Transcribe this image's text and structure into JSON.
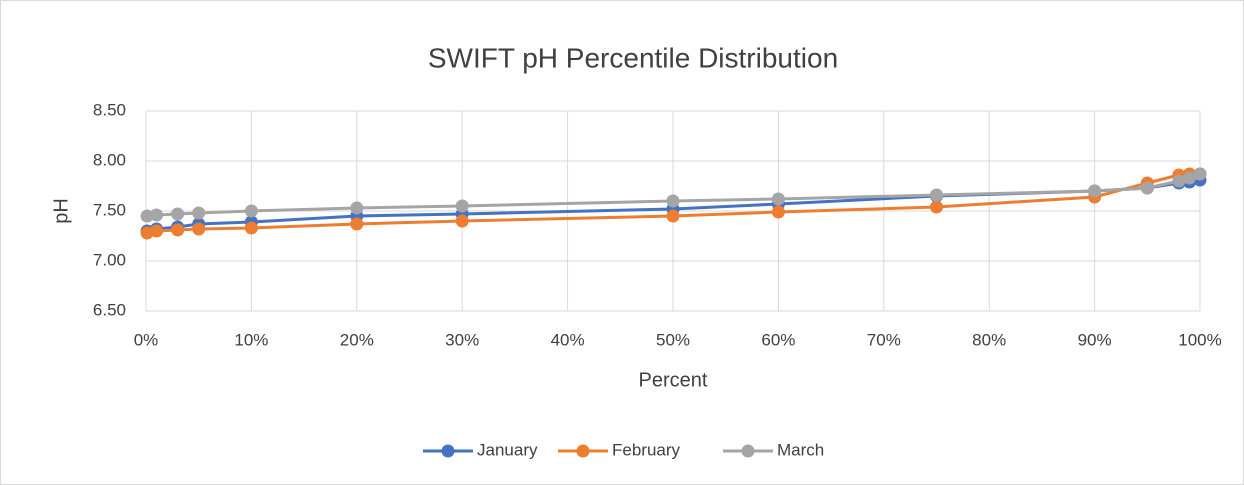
{
  "chart_data": {
    "type": "line",
    "title": "SWIFT pH Percentile Distribution",
    "x_label": "Percent",
    "y_label": "pH",
    "x": [
      0.1,
      1,
      3,
      5,
      10,
      20,
      30,
      50,
      60,
      75,
      90,
      95,
      98,
      99,
      100
    ],
    "series": [
      {
        "name": "January",
        "color": "#4472c4",
        "values": [
          7.3,
          7.32,
          7.34,
          7.37,
          7.39,
          7.45,
          7.47,
          7.52,
          7.57,
          7.65,
          7.7,
          7.73,
          7.78,
          7.79,
          7.81
        ]
      },
      {
        "name": "February",
        "color": "#ed7d31",
        "values": [
          7.28,
          7.3,
          7.31,
          7.32,
          7.33,
          7.37,
          7.4,
          7.45,
          7.49,
          7.54,
          7.64,
          7.78,
          7.86,
          7.87,
          7.87
        ]
      },
      {
        "name": "March",
        "color": "#a5a5a5",
        "values": [
          7.45,
          7.46,
          7.47,
          7.48,
          7.5,
          7.53,
          7.55,
          7.6,
          7.62,
          7.66,
          7.7,
          7.73,
          7.8,
          7.83,
          7.87
        ]
      }
    ],
    "xlim": [
      0,
      100
    ],
    "xticks": [
      {
        "value": 0,
        "label": "0%"
      },
      {
        "value": 10,
        "label": "10%"
      },
      {
        "value": 20,
        "label": "20%"
      },
      {
        "value": 30,
        "label": "30%"
      },
      {
        "value": 40,
        "label": "40%"
      },
      {
        "value": 50,
        "label": "50%"
      },
      {
        "value": 60,
        "label": "60%"
      },
      {
        "value": 70,
        "label": "70%"
      },
      {
        "value": 80,
        "label": "80%"
      },
      {
        "value": 90,
        "label": "90%"
      },
      {
        "value": 100,
        "label": "100%"
      }
    ],
    "ylim": [
      6.5,
      8.5
    ],
    "yticks": [
      {
        "value": 6.5,
        "label": "6.50"
      },
      {
        "value": 7,
        "label": "7.00"
      },
      {
        "value": 7.5,
        "label": "7.50"
      },
      {
        "value": 8,
        "label": "8.00"
      },
      {
        "value": 8.5,
        "label": "8.50"
      }
    ],
    "grid": true,
    "legend": "bottom"
  }
}
